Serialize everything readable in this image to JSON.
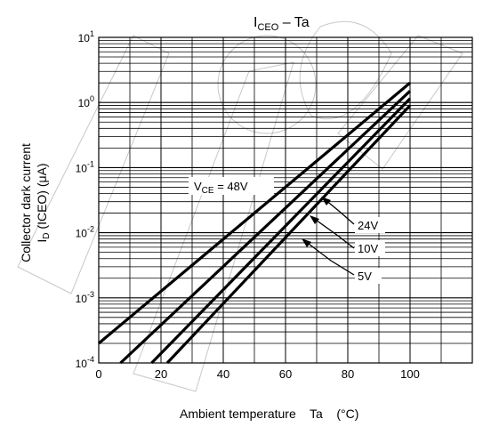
{
  "chart_data": {
    "type": "line",
    "title_main": "I",
    "title_sub": "CEO",
    "title_rest": " – Ta",
    "xlabel": "Ambient temperature    Ta    (°C)",
    "ylabel_line1": "Collector dark current",
    "ylabel_line2_main": "I",
    "ylabel_line2_sub": "D",
    "ylabel_line2_rest": " (ICEO)  (μA)",
    "xlim": [
      0,
      120
    ],
    "ylim": [
      0.0001,
      10
    ],
    "y_scale": "log",
    "x_ticks": [
      {
        "value": 0,
        "label": "0"
      },
      {
        "value": 20,
        "label": "20"
      },
      {
        "value": 40,
        "label": "40"
      },
      {
        "value": 60,
        "label": "60"
      },
      {
        "value": 80,
        "label": "80"
      },
      {
        "value": 100,
        "label": "100"
      }
    ],
    "y_ticks": [
      {
        "value": 0.0001,
        "base": "10",
        "exp": "-4"
      },
      {
        "value": 0.001,
        "base": "10",
        "exp": "-3"
      },
      {
        "value": 0.01,
        "base": "10",
        "exp": "-2"
      },
      {
        "value": 0.1,
        "base": "10",
        "exp": "-1"
      },
      {
        "value": 1,
        "base": "10",
        "exp": "0"
      },
      {
        "value": 10,
        "base": "10",
        "exp": "1"
      }
    ],
    "grid": true,
    "series": [
      {
        "name": "VCE = 48V",
        "x": [
          0,
          100
        ],
        "y": [
          0.0002,
          2.0
        ]
      },
      {
        "name": "24V",
        "x": [
          7,
          100
        ],
        "y": [
          0.0001,
          1.5
        ]
      },
      {
        "name": "10V",
        "x": [
          17,
          100
        ],
        "y": [
          0.0001,
          1.15
        ]
      },
      {
        "name": "5V",
        "x": [
          22,
          100
        ],
        "y": [
          0.0001,
          0.9
        ]
      }
    ],
    "annotations": {
      "vce_label_main": "V",
      "vce_label_sub": "CE",
      "vce_label_rest": " = 48V",
      "label_24v": "24V",
      "label_10v": "10V",
      "label_5v": "5V"
    },
    "line_color": "#000000",
    "grid_color": "#000000"
  }
}
